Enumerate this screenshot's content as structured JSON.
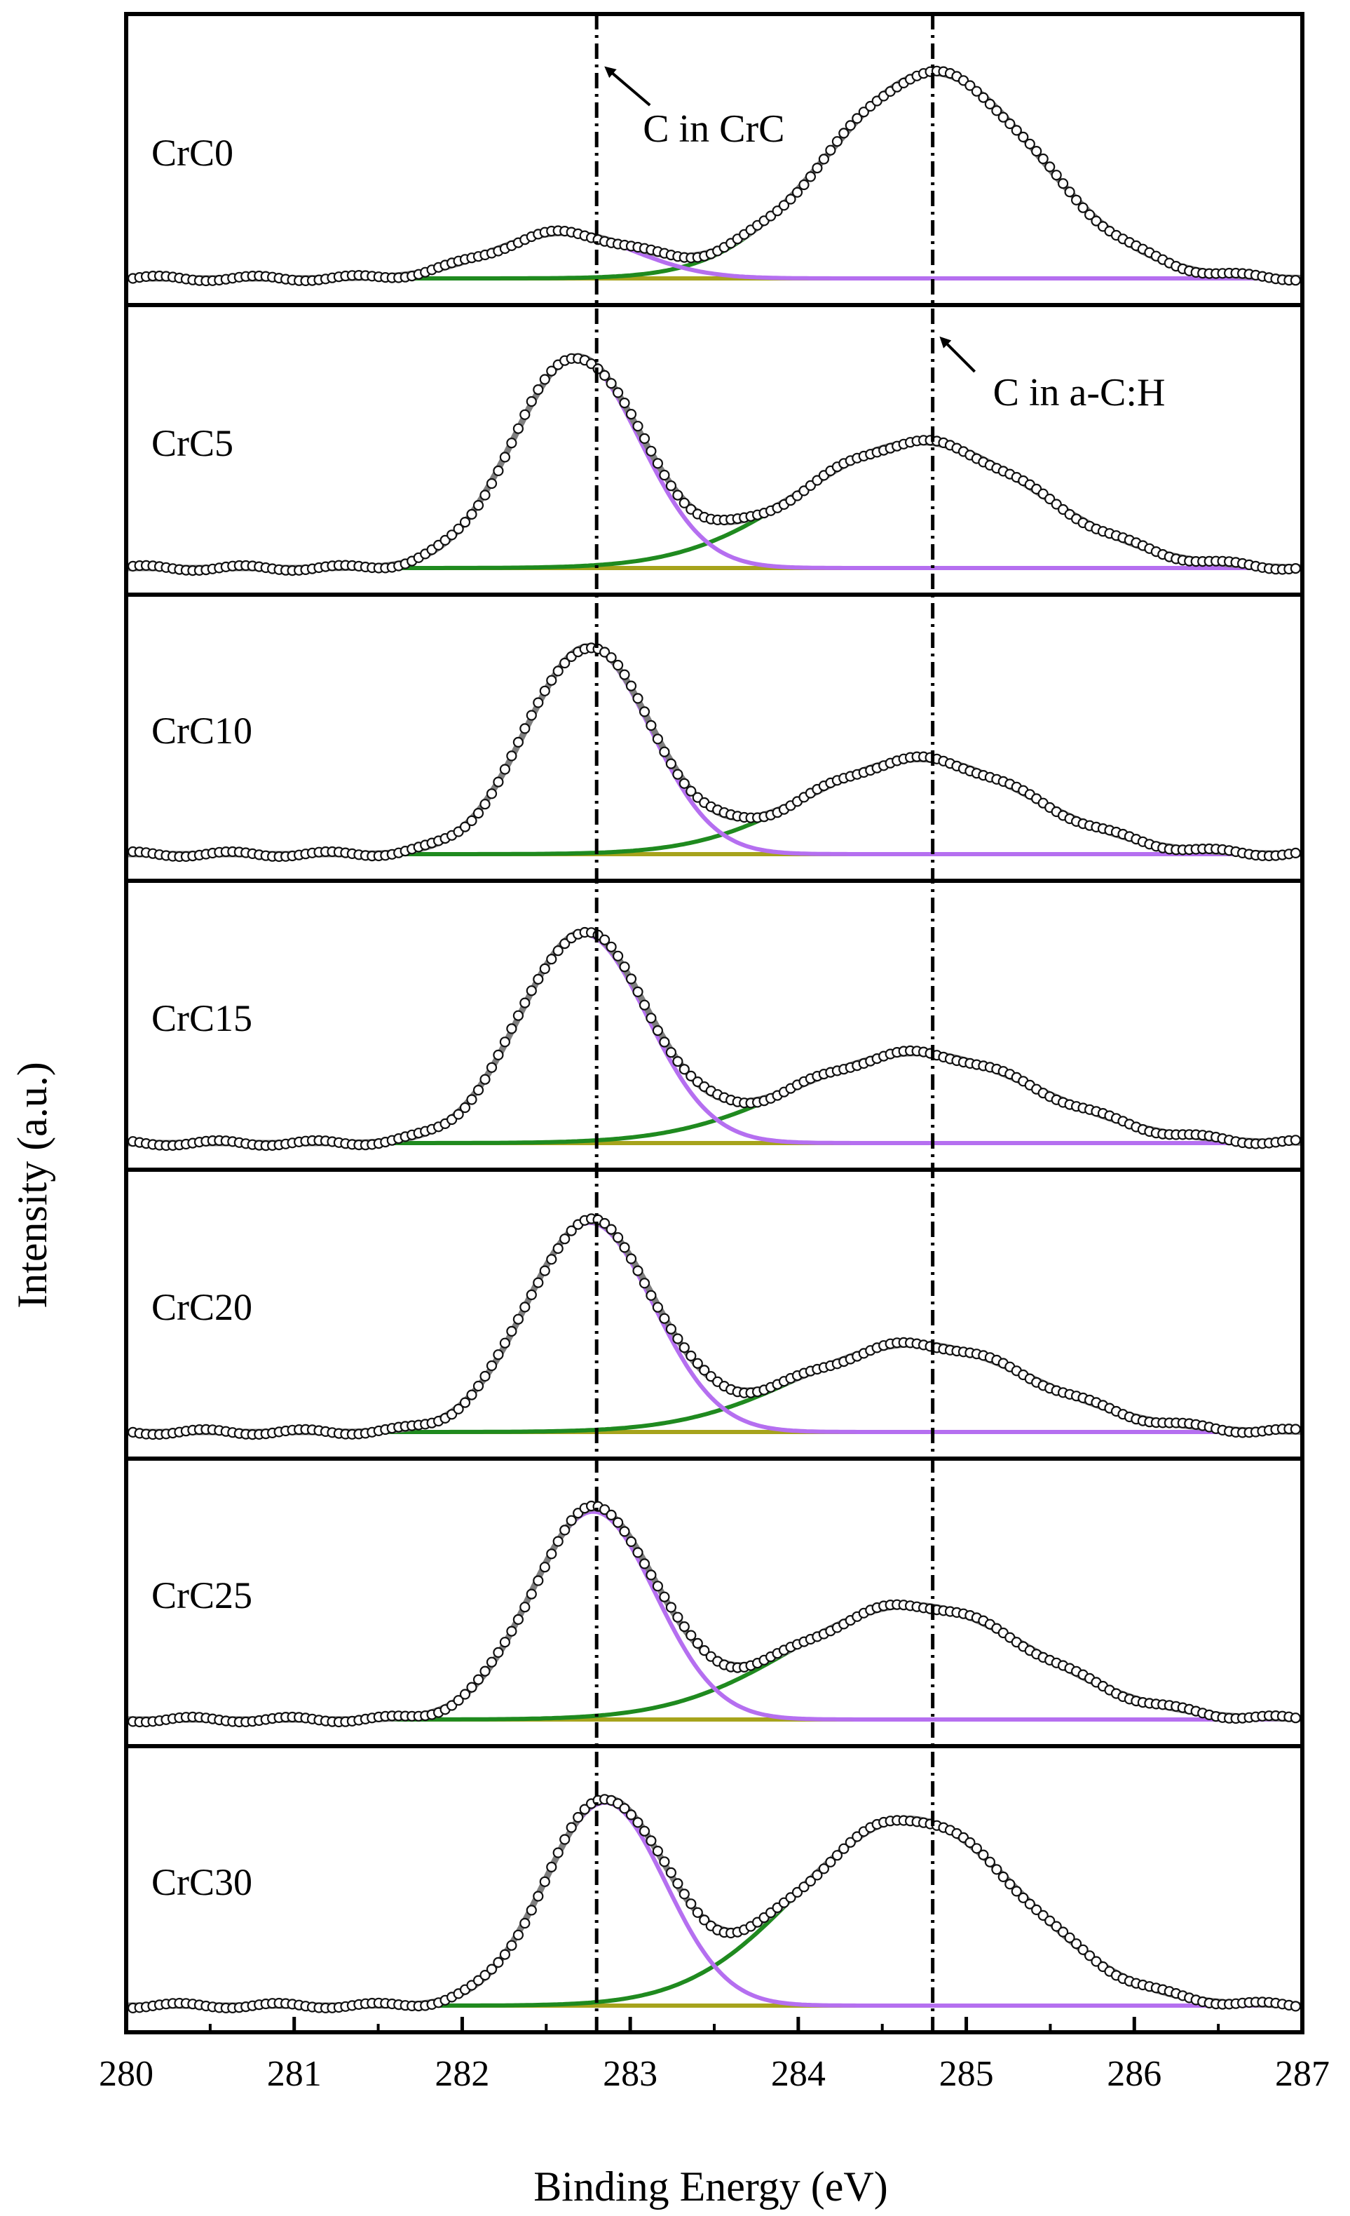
{
  "chart_data": {
    "type": "line",
    "stacked_panels": true,
    "xlabel": "Binding Energy (eV)",
    "ylabel": "Intensity (a.u.)",
    "xlim": [
      280,
      287
    ],
    "xticks": [
      "280",
      "281",
      "282",
      "283",
      "284",
      "285",
      "286",
      "287"
    ],
    "reference_lines": [
      {
        "x": 282.8,
        "label": "C in CrC"
      },
      {
        "x": 284.8,
        "label": "C in a-C:H"
      }
    ],
    "series_styles": {
      "data": {
        "marker": "open-circle",
        "color": "#111111"
      },
      "envelope": {
        "color": "#7f7f7f"
      },
      "crc_component": {
        "color": "#b56ff0"
      },
      "ach_component": {
        "color": "#1f8a1f"
      },
      "background": {
        "color": "#a6a31c"
      }
    },
    "panels": [
      {
        "sample": "CrC0",
        "crc": {
          "center": 282.6,
          "sigma": 0.42,
          "amp": 0.22
        },
        "ach": {
          "center": 284.8,
          "sigma": 0.62,
          "amp": 1.0
        },
        "ylim": [
          0,
          1.15
        ]
      },
      {
        "sample": "CrC5",
        "crc": {
          "center": 282.68,
          "sigma": 0.38,
          "amp": 1.0
        },
        "ach": {
          "center": 284.72,
          "sigma": 0.7,
          "amp": 0.6
        },
        "ylim": [
          0,
          1.12
        ]
      },
      {
        "sample": "CrC10",
        "crc": {
          "center": 282.75,
          "sigma": 0.37,
          "amp": 1.0
        },
        "ach": {
          "center": 284.72,
          "sigma": 0.66,
          "amp": 0.46
        },
        "ylim": [
          0,
          1.12
        ]
      },
      {
        "sample": "CrC15",
        "crc": {
          "center": 282.72,
          "sigma": 0.38,
          "amp": 1.0
        },
        "ach": {
          "center": 284.7,
          "sigma": 0.72,
          "amp": 0.43
        },
        "ylim": [
          0,
          1.12
        ]
      },
      {
        "sample": "CrC20",
        "crc": {
          "center": 282.76,
          "sigma": 0.38,
          "amp": 1.0
        },
        "ach": {
          "center": 284.7,
          "sigma": 0.7,
          "amp": 0.42
        },
        "ylim": [
          0,
          1.12
        ]
      },
      {
        "sample": "CrC25",
        "crc": {
          "center": 282.78,
          "sigma": 0.37,
          "amp": 1.0
        },
        "ach": {
          "center": 284.68,
          "sigma": 0.72,
          "amp": 0.55
        },
        "ylim": [
          0,
          1.12
        ]
      },
      {
        "sample": "CrC30",
        "crc": {
          "center": 282.85,
          "sigma": 0.36,
          "amp": 1.0
        },
        "ach": {
          "center": 284.66,
          "sigma": 0.66,
          "amp": 0.92
        },
        "ylim": [
          0,
          1.14
        ]
      }
    ]
  }
}
